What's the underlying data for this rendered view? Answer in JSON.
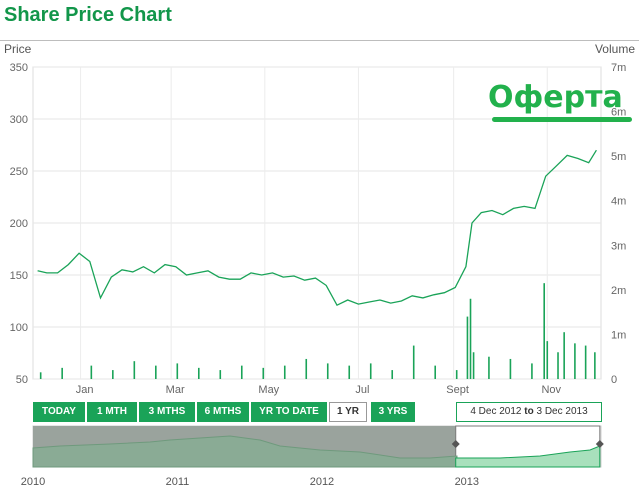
{
  "title": "Share Price Chart",
  "y_left_label": "Price",
  "y_right_label": "Volume",
  "annotation": "Оферта",
  "range_buttons": [
    "TODAY",
    "1 MTH",
    "3 MTHS",
    "6 MTHS",
    "YR TO DATE",
    "1 YR",
    "3 YRS"
  ],
  "selected_range": "1 YR",
  "date_from": "4 Dec 2012",
  "date_to_word": "to",
  "date_to": "3 Dec 2013",
  "colors": {
    "accent": "#12964a",
    "line": "#1aa358",
    "navigator_fill": "#8aab95",
    "annotation": "#22b14c"
  },
  "chart_data": {
    "type": "line",
    "price_axis": {
      "min": 50,
      "max": 350,
      "ticks": [
        50,
        100,
        150,
        200,
        250,
        300,
        350
      ]
    },
    "volume_axis": {
      "min": 0,
      "max": 7,
      "ticks": [
        "0",
        "1m",
        "2m",
        "3m",
        "4m",
        "5m",
        "6m",
        "7m"
      ]
    },
    "month_ticks": [
      "Jan",
      "Mar",
      "May",
      "Jul",
      "Sept",
      "Nov"
    ],
    "grid": true,
    "price_series": [
      {
        "date": "2012-12-04",
        "price": 154
      },
      {
        "date": "2012-12-10",
        "price": 152
      },
      {
        "date": "2012-12-17",
        "price": 152
      },
      {
        "date": "2012-12-24",
        "price": 160
      },
      {
        "date": "2012-12-31",
        "price": 171
      },
      {
        "date": "2013-01-07",
        "price": 163
      },
      {
        "date": "2013-01-14",
        "price": 128
      },
      {
        "date": "2013-01-21",
        "price": 148
      },
      {
        "date": "2013-01-28",
        "price": 155
      },
      {
        "date": "2013-02-04",
        "price": 153
      },
      {
        "date": "2013-02-11",
        "price": 158
      },
      {
        "date": "2013-02-18",
        "price": 152
      },
      {
        "date": "2013-02-25",
        "price": 160
      },
      {
        "date": "2013-03-04",
        "price": 158
      },
      {
        "date": "2013-03-11",
        "price": 150
      },
      {
        "date": "2013-03-18",
        "price": 152
      },
      {
        "date": "2013-03-25",
        "price": 154
      },
      {
        "date": "2013-04-01",
        "price": 148
      },
      {
        "date": "2013-04-08",
        "price": 146
      },
      {
        "date": "2013-04-15",
        "price": 146
      },
      {
        "date": "2013-04-22",
        "price": 152
      },
      {
        "date": "2013-04-29",
        "price": 150
      },
      {
        "date": "2013-05-06",
        "price": 152
      },
      {
        "date": "2013-05-13",
        "price": 148
      },
      {
        "date": "2013-05-20",
        "price": 149
      },
      {
        "date": "2013-05-27",
        "price": 145
      },
      {
        "date": "2013-06-03",
        "price": 147
      },
      {
        "date": "2013-06-10",
        "price": 140
      },
      {
        "date": "2013-06-17",
        "price": 121
      },
      {
        "date": "2013-06-24",
        "price": 126
      },
      {
        "date": "2013-07-01",
        "price": 122
      },
      {
        "date": "2013-07-08",
        "price": 124
      },
      {
        "date": "2013-07-15",
        "price": 126
      },
      {
        "date": "2013-07-22",
        "price": 123
      },
      {
        "date": "2013-07-29",
        "price": 125
      },
      {
        "date": "2013-08-05",
        "price": 130
      },
      {
        "date": "2013-08-12",
        "price": 128
      },
      {
        "date": "2013-08-19",
        "price": 131
      },
      {
        "date": "2013-08-26",
        "price": 133
      },
      {
        "date": "2013-09-02",
        "price": 138
      },
      {
        "date": "2013-09-09",
        "price": 158
      },
      {
        "date": "2013-09-13",
        "price": 200
      },
      {
        "date": "2013-09-19",
        "price": 210
      },
      {
        "date": "2013-09-26",
        "price": 212
      },
      {
        "date": "2013-10-03",
        "price": 208
      },
      {
        "date": "2013-10-10",
        "price": 214
      },
      {
        "date": "2013-10-17",
        "price": 216
      },
      {
        "date": "2013-10-24",
        "price": 214
      },
      {
        "date": "2013-10-31",
        "price": 245
      },
      {
        "date": "2013-11-07",
        "price": 255
      },
      {
        "date": "2013-11-14",
        "price": 265
      },
      {
        "date": "2013-11-21",
        "price": 262
      },
      {
        "date": "2013-11-28",
        "price": 258
      },
      {
        "date": "2013-12-03",
        "price": 270
      }
    ],
    "volume_series": [
      {
        "date": "2012-12-06",
        "volume": 0.15
      },
      {
        "date": "2012-12-20",
        "volume": 0.25
      },
      {
        "date": "2013-01-08",
        "volume": 0.3
      },
      {
        "date": "2013-01-22",
        "volume": 0.2
      },
      {
        "date": "2013-02-05",
        "volume": 0.4
      },
      {
        "date": "2013-02-19",
        "volume": 0.3
      },
      {
        "date": "2013-03-05",
        "volume": 0.35
      },
      {
        "date": "2013-03-19",
        "volume": 0.25
      },
      {
        "date": "2013-04-02",
        "volume": 0.2
      },
      {
        "date": "2013-04-16",
        "volume": 0.3
      },
      {
        "date": "2013-04-30",
        "volume": 0.25
      },
      {
        "date": "2013-05-14",
        "volume": 0.3
      },
      {
        "date": "2013-05-28",
        "volume": 0.45
      },
      {
        "date": "2013-06-11",
        "volume": 0.35
      },
      {
        "date": "2013-06-25",
        "volume": 0.3
      },
      {
        "date": "2013-07-09",
        "volume": 0.35
      },
      {
        "date": "2013-07-23",
        "volume": 0.2
      },
      {
        "date": "2013-08-06",
        "volume": 0.75
      },
      {
        "date": "2013-08-20",
        "volume": 0.3
      },
      {
        "date": "2013-09-03",
        "volume": 0.2
      },
      {
        "date": "2013-09-10",
        "volume": 1.4
      },
      {
        "date": "2013-09-12",
        "volume": 1.8
      },
      {
        "date": "2013-09-14",
        "volume": 0.6
      },
      {
        "date": "2013-09-24",
        "volume": 0.5
      },
      {
        "date": "2013-10-08",
        "volume": 0.45
      },
      {
        "date": "2013-10-22",
        "volume": 0.35
      },
      {
        "date": "2013-10-30",
        "volume": 2.15
      },
      {
        "date": "2013-11-01",
        "volume": 0.85
      },
      {
        "date": "2013-11-08",
        "volume": 0.6
      },
      {
        "date": "2013-11-12",
        "volume": 1.05
      },
      {
        "date": "2013-11-19",
        "volume": 0.8
      },
      {
        "date": "2013-11-26",
        "volume": 0.75
      },
      {
        "date": "2013-12-02",
        "volume": 0.6
      }
    ],
    "navigator": {
      "x_labels": [
        "2010",
        "2011",
        "2012",
        "2013"
      ],
      "selection_from": "2012-12-04",
      "selection_to": "2013-12-03"
    }
  }
}
